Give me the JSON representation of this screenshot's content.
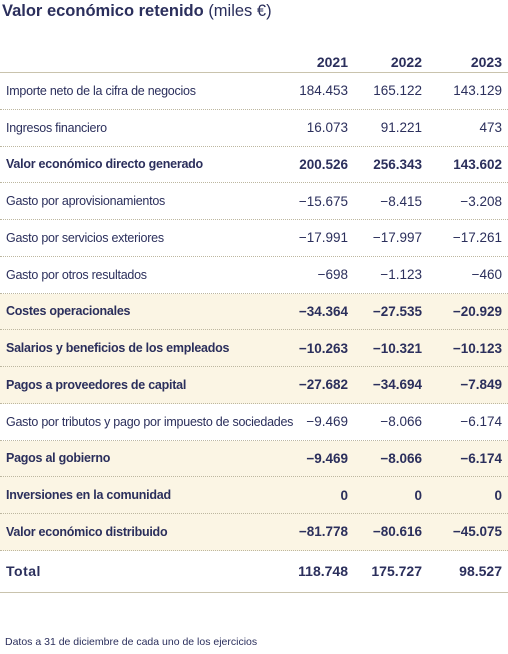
{
  "title": {
    "main": "Valor económico retenido",
    "unit": "(miles €)"
  },
  "columns": [
    "2021",
    "2022",
    "2023"
  ],
  "rows": [
    {
      "label": "Importe neto de la cifra de negocios",
      "values": [
        "184.453",
        "165.122",
        "143.129"
      ],
      "bold": false,
      "shaded": false
    },
    {
      "label": "Ingresos financiero",
      "values": [
        "16.073",
        "91.221",
        "473"
      ],
      "bold": false,
      "shaded": false
    },
    {
      "label": "Valor económico directo generado",
      "values": [
        "200.526",
        "256.343",
        "143.602"
      ],
      "bold": true,
      "shaded": false
    },
    {
      "label": "Gasto por aprovisionamientos",
      "values": [
        "−15.675",
        "−8.415",
        "−3.208"
      ],
      "bold": false,
      "shaded": false
    },
    {
      "label": "Gasto por servicios exteriores",
      "values": [
        "−17.991",
        "−17.997",
        "−17.261"
      ],
      "bold": false,
      "shaded": false
    },
    {
      "label": "Gasto por otros resultados",
      "values": [
        "−698",
        "−1.123",
        "−460"
      ],
      "bold": false,
      "shaded": false
    },
    {
      "label": "Costes operacionales",
      "values": [
        "−34.364",
        "−27.535",
        "−20.929"
      ],
      "bold": true,
      "shaded": true
    },
    {
      "label": "Salarios y beneficios de los empleados",
      "values": [
        "−10.263",
        "−10.321",
        "−10.123"
      ],
      "bold": true,
      "shaded": true
    },
    {
      "label": "Pagos a proveedores de capital",
      "values": [
        "−27.682",
        "−34.694",
        "−7.849"
      ],
      "bold": true,
      "shaded": true
    },
    {
      "label": "Gasto por tributos y pago por impuesto de sociedades",
      "values": [
        "−9.469",
        "−8.066",
        "−6.174"
      ],
      "bold": false,
      "shaded": false
    },
    {
      "label": "Pagos al gobierno",
      "values": [
        "−9.469",
        "−8.066",
        "−6.174"
      ],
      "bold": true,
      "shaded": true
    },
    {
      "label": "Inversiones en la comunidad",
      "values": [
        "0",
        "0",
        "0"
      ],
      "bold": true,
      "shaded": true
    },
    {
      "label": "Valor económico distribuido",
      "values": [
        "−81.778",
        "−80.616",
        "−45.075"
      ],
      "bold": true,
      "shaded": true
    }
  ],
  "total": {
    "label": "Total",
    "values": [
      "118.748",
      "175.727",
      "98.527"
    ]
  },
  "footnote": "Datos a 31 de diciembre de cada uno de los ejercicios",
  "colors": {
    "text": "#2b2f5c",
    "shade": "#fbf5e4",
    "rule": "#c9c3ad"
  }
}
